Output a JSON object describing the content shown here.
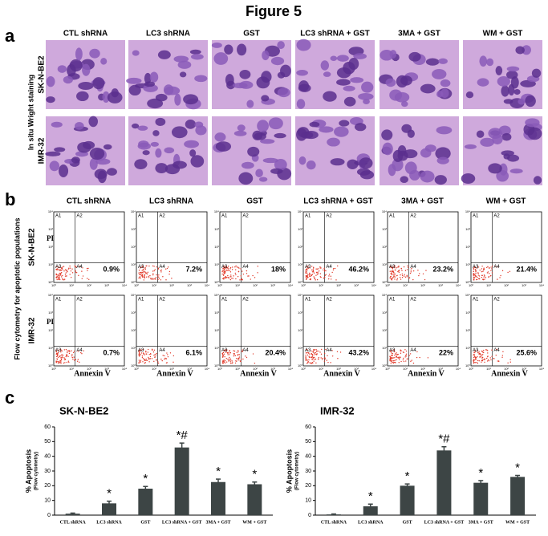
{
  "figure_title": "Figure 5",
  "panel_a": {
    "label": "a",
    "side_label": "In situ Wright staining",
    "columns": [
      "CTL shRNA",
      "LC3 shRNA",
      "GST",
      "LC3 shRNA + GST",
      "3MA + GST",
      "WM + GST"
    ],
    "rows": [
      "SK-N-BE2",
      "IMR-32"
    ]
  },
  "panel_b": {
    "label": "b",
    "side_label": "Flow cytometry for apoptotic populations",
    "columns": [
      "CTL shRNA",
      "LC3 shRNA",
      "GST",
      "LC3 shRNA + GST",
      "3MA + GST",
      "WM + GST"
    ],
    "rows": [
      "SK-N-BE2",
      "IMR-32"
    ],
    "y_axis": "PI",
    "x_axis": "Annexin V",
    "quadrants": [
      "A1",
      "A2",
      "A3",
      "A4"
    ],
    "log_ticks": [
      "10⁰",
      "10¹",
      "10²",
      "10³",
      "10⁴"
    ],
    "percentages": [
      [
        "0.9%",
        "7.2%",
        "18%",
        "46.2%",
        "23.2%",
        "21.4%"
      ],
      [
        "0.7%",
        "6.1%",
        "20.4%",
        "43.2%",
        "22%",
        "25.6%"
      ]
    ]
  },
  "panel_c": {
    "label": "c"
  },
  "chart_data": [
    {
      "type": "bar",
      "title": "SK-N-BE2",
      "y_label": "% Apoptosis",
      "y_sublabel": "(Flow cytometry)",
      "categories": [
        "CTL shRNA",
        "LC3 shRNA",
        "GST",
        "LC3 shRNA + GST",
        "3MA + GST",
        "WM + GST"
      ],
      "values": [
        1,
        8,
        18,
        46,
        22.5,
        21
      ],
      "errors": [
        0.4,
        1.5,
        1.5,
        3,
        2,
        1.5
      ],
      "markers": [
        null,
        "*",
        "*",
        "*#",
        "*",
        "*"
      ],
      "color": "#3d4545",
      "ylim": [
        0,
        60
      ],
      "yticks": [
        0,
        10,
        20,
        30,
        40,
        50,
        60
      ]
    },
    {
      "type": "bar",
      "title": "IMR-32",
      "y_label": "% Apoptosis",
      "y_sublabel": "(Flow cytometry)",
      "categories": [
        "CTL shRNA",
        "LC3 shRNA",
        "GST",
        "LC3 shRNA + GST",
        "3MA + GST",
        "WM + GST"
      ],
      "values": [
        0.5,
        6,
        20,
        44,
        22,
        26
      ],
      "errors": [
        0.3,
        1.5,
        1.2,
        2.5,
        1.5,
        1
      ],
      "markers": [
        null,
        "*",
        "*",
        "*#",
        "*",
        "*"
      ],
      "color": "#3d4545",
      "ylim": [
        0,
        60
      ],
      "yticks": [
        0,
        10,
        20,
        30,
        40,
        50,
        60
      ]
    }
  ]
}
